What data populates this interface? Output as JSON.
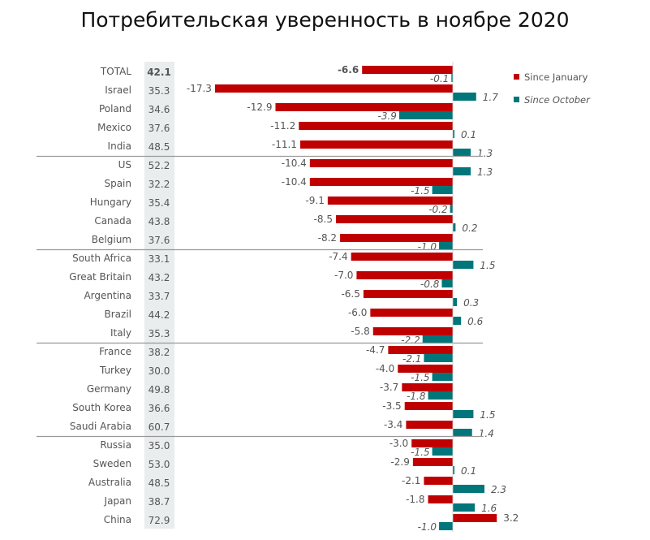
{
  "chart_data": {
    "type": "bar",
    "orientation": "horizontal",
    "title": "Потребительская уверенность в ноябре 2020",
    "categories": [
      "TOTAL",
      "Israel",
      "Poland",
      "Mexico",
      "India",
      "US",
      "Spain",
      "Hungary",
      "Canada",
      "Belgium",
      "South Africa",
      "Great Britain",
      "Argentina",
      "Brazil",
      "Italy",
      "France",
      "Turkey",
      "Germany",
      "South Korea",
      "Saudi Arabia",
      "Russia",
      "Sweden",
      "Australia",
      "Japan",
      "China"
    ],
    "scores": [
      "42.1",
      "35.3",
      "34.6",
      "37.6",
      "48.5",
      "52.2",
      "32.2",
      "35.4",
      "43.8",
      "37.6",
      "33.1",
      "43.2",
      "33.7",
      "44.2",
      "35.3",
      "38.2",
      "30.0",
      "49.8",
      "36.6",
      "60.7",
      "35.0",
      "53.0",
      "48.5",
      "38.7",
      "72.9"
    ],
    "series": [
      {
        "name": "Since January",
        "color": "#c00000",
        "values": [
          -6.6,
          -17.3,
          -12.9,
          -11.2,
          -11.1,
          -10.4,
          -10.4,
          -9.1,
          -8.5,
          -8.2,
          -7.4,
          -7.0,
          -6.5,
          -6.0,
          -5.8,
          -4.7,
          -4.0,
          -3.7,
          -3.5,
          -3.4,
          -3.0,
          -2.9,
          -2.1,
          -1.8,
          3.2
        ]
      },
      {
        "name": "Since October",
        "color": "#00767a",
        "values": [
          -0.1,
          1.7,
          -3.9,
          0.1,
          1.3,
          1.3,
          -1.5,
          -0.2,
          0.2,
          -1.0,
          1.5,
          -0.8,
          0.3,
          0.6,
          -2.2,
          -2.1,
          -1.5,
          -1.8,
          1.5,
          1.4,
          -1.5,
          0.1,
          2.3,
          1.6,
          -1.0
        ]
      }
    ],
    "group_separators_after": [
      "India",
      "Belgium",
      "Italy",
      "Saudi Arabia"
    ],
    "legend_position": "right",
    "grid": false
  }
}
